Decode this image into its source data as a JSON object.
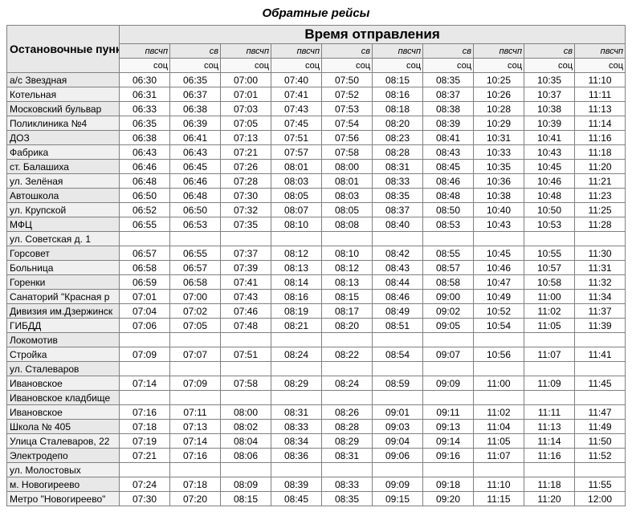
{
  "title": "Обратные рейсы",
  "headers": {
    "stops": "Остановочные пункты",
    "departure": "Время отправления"
  },
  "day_labels": [
    "пвсчп",
    "св",
    "пвсчп",
    "пвсчп",
    "св",
    "пвсчп",
    "св",
    "пвсчп",
    "св",
    "пвсчп"
  ],
  "soc_label": "соц",
  "colors": {
    "header_bg": "#e8e8e8",
    "soc_bg": "#f8f8f8",
    "stop_bg": "#e8e8e8",
    "border": "#808080",
    "text": "#000000"
  },
  "fonts": {
    "title_size_pt": 11,
    "header_size_pt": 10,
    "cell_size_pt": 9
  },
  "stops": [
    {
      "name": "а/с Звездная",
      "times": [
        "06:30",
        "06:35",
        "07:00",
        "07:40",
        "07:50",
        "08:15",
        "08:35",
        "10:25",
        "10:35",
        "11:10"
      ]
    },
    {
      "name": "Котельная",
      "times": [
        "06:31",
        "06:37",
        "07:01",
        "07:41",
        "07:52",
        "08:16",
        "08:37",
        "10:26",
        "10:37",
        "11:11"
      ]
    },
    {
      "name": "Московский бульвар",
      "times": [
        "06:33",
        "06:38",
        "07:03",
        "07:43",
        "07:53",
        "08:18",
        "08:38",
        "10:28",
        "10:38",
        "11:13"
      ]
    },
    {
      "name": "Поликлиника №4",
      "times": [
        "06:35",
        "06:39",
        "07:05",
        "07:45",
        "07:54",
        "08:20",
        "08:39",
        "10:29",
        "10:39",
        "11:14"
      ]
    },
    {
      "name": "ДОЗ",
      "times": [
        "06:38",
        "06:41",
        "07:13",
        "07:51",
        "07:56",
        "08:23",
        "08:41",
        "10:31",
        "10:41",
        "11:16"
      ]
    },
    {
      "name": "Фабрика",
      "times": [
        "06:43",
        "06:43",
        "07:21",
        "07:57",
        "07:58",
        "08:28",
        "08:43",
        "10:33",
        "10:43",
        "11:18"
      ]
    },
    {
      "name": "ст. Балашиха",
      "times": [
        "06:46",
        "06:45",
        "07:26",
        "08:01",
        "08:00",
        "08:31",
        "08:45",
        "10:35",
        "10:45",
        "11:20"
      ]
    },
    {
      "name": "ул. Зелёная",
      "times": [
        "06:48",
        "06:46",
        "07:28",
        "08:03",
        "08:01",
        "08:33",
        "08:46",
        "10:36",
        "10:46",
        "11:21"
      ]
    },
    {
      "name": "Автошкола",
      "times": [
        "06:50",
        "06:48",
        "07:30",
        "08:05",
        "08:03",
        "08:35",
        "08:48",
        "10:38",
        "10:48",
        "11:23"
      ]
    },
    {
      "name": "ул. Крупской",
      "times": [
        "06:52",
        "06:50",
        "07:32",
        "08:07",
        "08:05",
        "08:37",
        "08:50",
        "10:40",
        "10:50",
        "11:25"
      ]
    },
    {
      "name": "МФЦ",
      "times": [
        "06:55",
        "06:53",
        "07:35",
        "08:10",
        "08:08",
        "08:40",
        "08:53",
        "10:43",
        "10:53",
        "11:28"
      ]
    },
    {
      "name": "ул. Советская д. 1",
      "times": [
        "",
        "",
        "",
        "",
        "",
        "",
        "",
        "",
        "",
        ""
      ]
    },
    {
      "name": "Горсовет",
      "times": [
        "06:57",
        "06:55",
        "07:37",
        "08:12",
        "08:10",
        "08:42",
        "08:55",
        "10:45",
        "10:55",
        "11:30"
      ]
    },
    {
      "name": "Больница",
      "times": [
        "06:58",
        "06:57",
        "07:39",
        "08:13",
        "08:12",
        "08:43",
        "08:57",
        "10:46",
        "10:57",
        "11:31"
      ]
    },
    {
      "name": "Горенки",
      "times": [
        "06:59",
        "06:58",
        "07:41",
        "08:14",
        "08:13",
        "08:44",
        "08:58",
        "10:47",
        "10:58",
        "11:32"
      ]
    },
    {
      "name": "Санаторий \"Красная р",
      "times": [
        "07:01",
        "07:00",
        "07:43",
        "08:16",
        "08:15",
        "08:46",
        "09:00",
        "10:49",
        "11:00",
        "11:34"
      ]
    },
    {
      "name": "Дивизия им.Дзержинск",
      "times": [
        "07:04",
        "07:02",
        "07:46",
        "08:19",
        "08:17",
        "08:49",
        "09:02",
        "10:52",
        "11:02",
        "11:37"
      ]
    },
    {
      "name": "ГИБДД",
      "times": [
        "07:06",
        "07:05",
        "07:48",
        "08:21",
        "08:20",
        "08:51",
        "09:05",
        "10:54",
        "11:05",
        "11:39"
      ]
    },
    {
      "name": "Локомотив",
      "times": [
        "",
        "",
        "",
        "",
        "",
        "",
        "",
        "",
        "",
        ""
      ]
    },
    {
      "name": "Стройка",
      "times": [
        "07:09",
        "07:07",
        "07:51",
        "08:24",
        "08:22",
        "08:54",
        "09:07",
        "10:56",
        "11:07",
        "11:41"
      ]
    },
    {
      "name": "ул. Сталеваров",
      "times": [
        "",
        "",
        "",
        "",
        "",
        "",
        "",
        "",
        "",
        ""
      ]
    },
    {
      "name": "Ивановское",
      "times": [
        "07:14",
        "07:09",
        "07:58",
        "08:29",
        "08:24",
        "08:59",
        "09:09",
        "11:00",
        "11:09",
        "11:45"
      ]
    },
    {
      "name": "Ивановское кладбище",
      "times": [
        "",
        "",
        "",
        "",
        "",
        "",
        "",
        "",
        "",
        ""
      ]
    },
    {
      "name": "Ивановское",
      "times": [
        "07:16",
        "07:11",
        "08:00",
        "08:31",
        "08:26",
        "09:01",
        "09:11",
        "11:02",
        "11:11",
        "11:47"
      ]
    },
    {
      "name": "Школа № 405",
      "times": [
        "07:18",
        "07:13",
        "08:02",
        "08:33",
        "08:28",
        "09:03",
        "09:13",
        "11:04",
        "11:13",
        "11:49"
      ]
    },
    {
      "name": "Улица Сталеваров, 22",
      "times": [
        "07:19",
        "07:14",
        "08:04",
        "08:34",
        "08:29",
        "09:04",
        "09:14",
        "11:05",
        "11:14",
        "11:50"
      ]
    },
    {
      "name": "Электродепо",
      "times": [
        "07:21",
        "07:16",
        "08:06",
        "08:36",
        "08:31",
        "09:06",
        "09:16",
        "11:07",
        "11:16",
        "11:52"
      ]
    },
    {
      "name": "ул. Молостовых",
      "times": [
        "",
        "",
        "",
        "",
        "",
        "",
        "",
        "",
        "",
        ""
      ]
    },
    {
      "name": "м. Новогиреево",
      "times": [
        "07:24",
        "07:18",
        "08:09",
        "08:39",
        "08:33",
        "09:09",
        "09:18",
        "11:10",
        "11:18",
        "11:55"
      ]
    },
    {
      "name": "Метро \"Новогиреево\"",
      "times": [
        "07:30",
        "07:20",
        "08:15",
        "08:45",
        "08:35",
        "09:15",
        "09:20",
        "11:15",
        "11:20",
        "12:00"
      ]
    }
  ]
}
